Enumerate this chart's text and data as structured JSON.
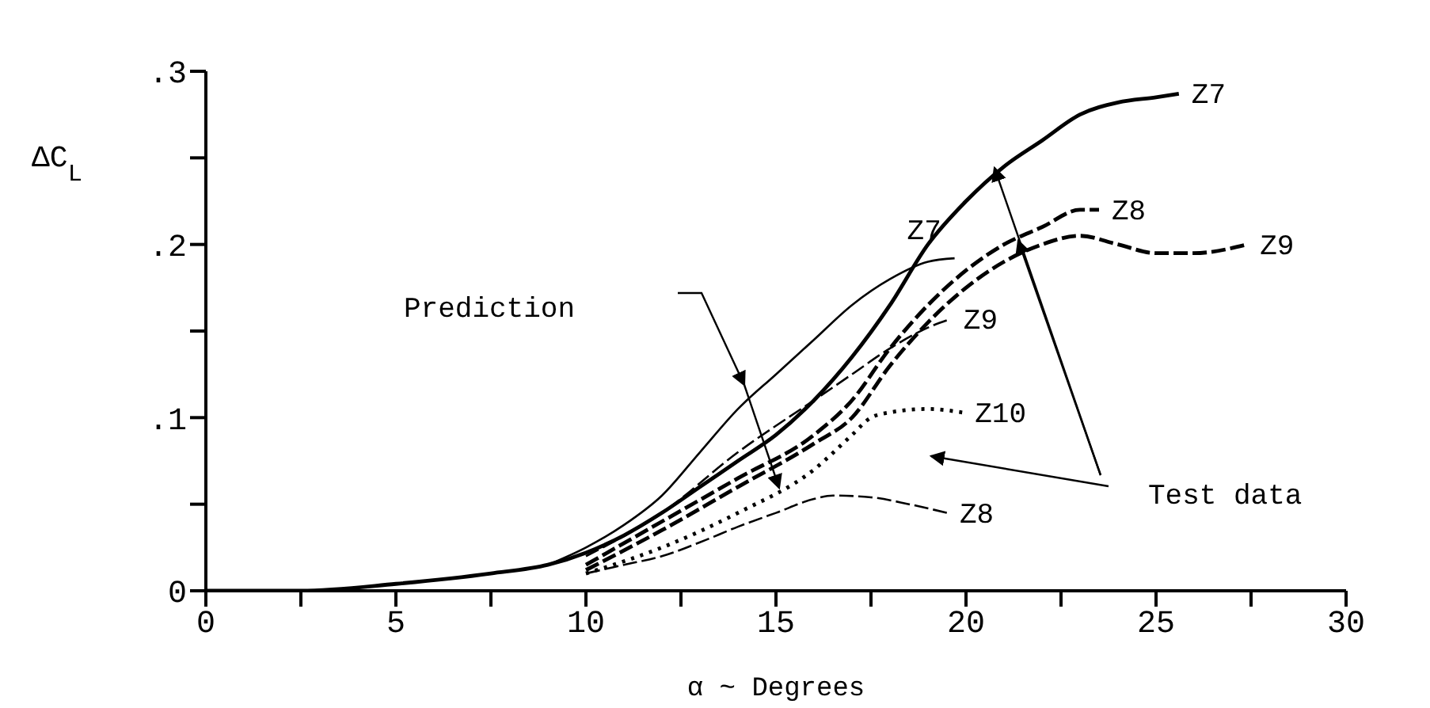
{
  "chart_data": {
    "type": "line",
    "xlabel": "α ~ Degrees",
    "ylabel": "ΔC$_{L}$",
    "xlim": [
      0,
      30
    ],
    "ylim": [
      0,
      0.3
    ],
    "xticks": [
      0,
      {
        "value": 2.5,
        "label": null
      },
      5,
      {
        "value": 7.5,
        "label": null
      },
      10,
      {
        "value": 12.5,
        "label": null
      },
      15,
      {
        "value": 17.5,
        "label": null
      },
      20,
      {
        "value": 22.5,
        "label": null
      },
      25,
      {
        "value": 27.5,
        "label": null
      },
      30
    ],
    "yticks": [
      0,
      {
        "value": 0.05,
        "label": null
      },
      {
        "value": 0.1,
        "label": ".1"
      },
      {
        "value": 0.15,
        "label": null
      },
      {
        "value": 0.2,
        "label": ".2"
      },
      {
        "value": 0.25,
        "label": null
      },
      {
        "value": 0.3,
        "label": ".3"
      }
    ],
    "grid": false,
    "legend": false,
    "marker": "none",
    "annotations": [
      "Prediction",
      "Test data"
    ],
    "series": [
      {
        "name": "Z7",
        "color": "#000000",
        "line_style": "solid",
        "x": [
          0,
          2.5,
          5,
          7.5,
          9,
          10,
          11,
          12,
          13,
          14,
          15,
          16,
          17,
          18,
          19,
          20,
          21,
          22,
          23,
          24,
          25,
          25.6
        ],
        "values": [
          0,
          0,
          0.004,
          0.01,
          0.015,
          0.022,
          0.032,
          0.045,
          0.06,
          0.075,
          0.09,
          0.11,
          0.135,
          0.165,
          0.2,
          0.225,
          0.245,
          0.26,
          0.275,
          0.282,
          0.285,
          0.287
        ]
      },
      {
        "name": "Z8",
        "color": "#000000",
        "line_style": "dashed",
        "x": [
          10,
          12,
          14,
          16,
          17,
          18,
          19,
          20,
          21,
          22,
          23,
          23.5
        ],
        "values": [
          0.015,
          0.04,
          0.065,
          0.09,
          0.11,
          0.14,
          0.165,
          0.185,
          0.2,
          0.21,
          0.22,
          0.22
        ]
      },
      {
        "name": "Z9",
        "color": "#000000",
        "line_style": "dashed",
        "x": [
          10,
          12,
          14,
          16,
          17,
          18,
          19,
          20,
          21,
          22,
          23,
          24,
          25,
          26,
          27.4
        ],
        "values": [
          0.012,
          0.035,
          0.06,
          0.085,
          0.1,
          0.13,
          0.155,
          0.175,
          0.19,
          0.2,
          0.205,
          0.2,
          0.195,
          0.195,
          0.2
        ]
      },
      {
        "name": "Z10",
        "color": "#000000",
        "line_style": "dotted",
        "x": [
          10,
          12,
          14,
          16,
          17,
          17.5,
          18,
          19,
          19.9
        ],
        "values": [
          0.01,
          0.025,
          0.045,
          0.07,
          0.09,
          0.1,
          0.103,
          0.105,
          0.103
        ]
      },
      {
        "name": "Z7",
        "color": "#000000",
        "line_style": "solid",
        "x": [
          9,
          10,
          11,
          12,
          13,
          14,
          15,
          16,
          17,
          18,
          19,
          19.7
        ],
        "values": [
          0.015,
          0.025,
          0.038,
          0.055,
          0.08,
          0.105,
          0.125,
          0.145,
          0.165,
          0.18,
          0.19,
          0.192
        ]
      },
      {
        "name": "Z9",
        "color": "#000000",
        "line_style": "dashed",
        "x": [
          10,
          12,
          14,
          16,
          17,
          18,
          19,
          19.6
        ],
        "values": [
          0.02,
          0.045,
          0.08,
          0.11,
          0.125,
          0.14,
          0.152,
          0.157
        ]
      },
      {
        "name": "Z8",
        "color": "#000000",
        "line_style": "dashed",
        "x": [
          10,
          11,
          12,
          13,
          14,
          15,
          16,
          16.5,
          17.5,
          18.5,
          19.5
        ],
        "values": [
          0.01,
          0.015,
          0.02,
          0.028,
          0.037,
          0.045,
          0.053,
          0.055,
          0.054,
          0.05,
          0.045
        ]
      }
    ]
  }
}
